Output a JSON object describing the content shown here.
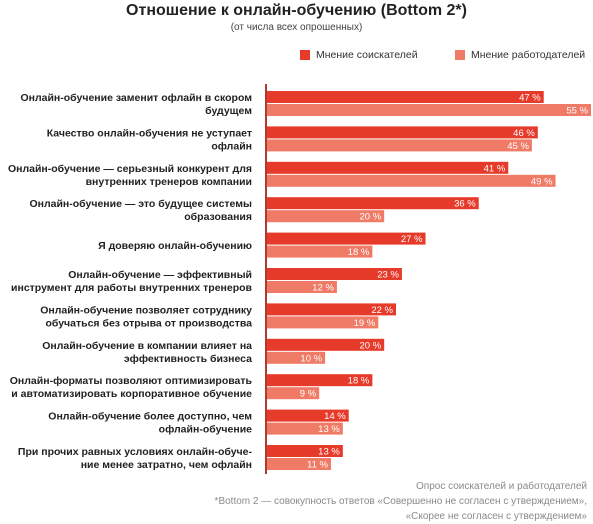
{
  "chart_data": {
    "type": "bar",
    "title": "Отношение к онлайн-обучению (Bottom 2*)",
    "subtitle": "(от числа всех опрошенных)",
    "orientation": "horizontal",
    "xlim": [
      0,
      55
    ],
    "grid": false,
    "legend_position": "top-right",
    "categories": [
      [
        "Онлайн-обучение заменит офлайн в скором",
        "будущем"
      ],
      [
        "Качество онлайн-обучения не уступает",
        "офлайн"
      ],
      [
        "Онлайн-обучение — серьезный конкурент для",
        "внутренних тренеров компании"
      ],
      [
        "Онлайн-обучение — это будущее системы",
        "образования"
      ],
      [
        "Я доверяю онлайн-обучению"
      ],
      [
        "Онлайн-обучение — эффективный",
        "инструмент для работы внутренних тренеров"
      ],
      [
        "Онлайн-обучение позволяет сотруднику",
        "обучаться без отрыва от производства"
      ],
      [
        "Онлайн-обучение в компании влияет на",
        "эффективность бизнеса"
      ],
      [
        "Онлайн-форматы позволяют оптимизировать",
        "и автоматизировать корпоративное обучение"
      ],
      [
        "Онлайн-обучение более доступно, чем",
        "офлайн-обучение"
      ],
      [
        "При прочих равных условиях онлайн-обуче-",
        "ние менее затратно, чем офлайн"
      ]
    ],
    "series": [
      {
        "name": "Мнение соискателей",
        "color": "#e63a2a",
        "values": [
          47,
          46,
          41,
          36,
          27,
          23,
          22,
          20,
          18,
          14,
          13
        ],
        "labels": [
          "47 %",
          "46 %",
          "41 %",
          "36 %",
          "27 %",
          "23 %",
          "22 %",
          "20 %",
          "18 %",
          "14 %",
          "13 %"
        ]
      },
      {
        "name": "Мнение работодателей",
        "color": "#ef7b66",
        "values": [
          55,
          45,
          49,
          20,
          18,
          12,
          19,
          10,
          9,
          13,
          11
        ],
        "labels": [
          "55 %",
          "45 %",
          "49 %",
          "20 %",
          "18 %",
          "12 %",
          "19 %",
          "10 %",
          "9 %",
          "13 %",
          "11 %"
        ]
      }
    ],
    "axis_color": "#b03a2e"
  },
  "footnotes": {
    "source": "Опрос соискателей и работодателей",
    "note_line1": "*Bottom 2 — совокупность ответов «Совершенно не согласен с утверждением»,",
    "note_line2": "«Скорее не согласен с утверждением»"
  }
}
